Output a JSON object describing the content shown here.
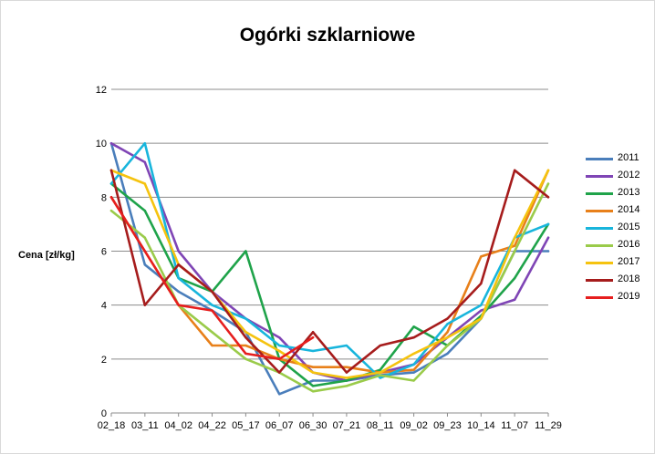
{
  "chart_data": {
    "type": "line",
    "title": "Ogórki szklarniowe",
    "ylabel": "Cena [zł/kg]",
    "xlabel": "",
    "ylim": [
      0,
      12
    ],
    "yticks": [
      0,
      2,
      4,
      6,
      8,
      10,
      12
    ],
    "grid": true,
    "legend_position": "right",
    "categories": [
      "02_18",
      "03_11",
      "04_02",
      "04_22",
      "05_17",
      "06_07",
      "06_30",
      "07_21",
      "08_11",
      "09_02",
      "09_23",
      "10_14",
      "11_07",
      "11_29"
    ],
    "series": [
      {
        "name": "2011",
        "color": "#4a7ebb",
        "values": [
          10.0,
          5.5,
          4.5,
          3.8,
          3.0,
          0.7,
          1.2,
          1.2,
          1.4,
          1.5,
          2.2,
          3.5,
          6.0,
          6.0
        ]
      },
      {
        "name": "2012",
        "color": "#7f45b5",
        "values": [
          10.0,
          9.3,
          6.0,
          4.5,
          3.5,
          2.8,
          1.5,
          1.2,
          1.5,
          1.8,
          2.8,
          3.8,
          4.2,
          6.5
        ]
      },
      {
        "name": "2013",
        "color": "#1fa34a",
        "values": [
          8.5,
          7.5,
          5.0,
          4.5,
          6.0,
          2.0,
          1.0,
          1.2,
          1.6,
          3.2,
          2.5,
          3.6,
          5.0,
          7.0
        ]
      },
      {
        "name": "2014",
        "color": "#e8801a",
        "values": [
          8.0,
          6.0,
          4.0,
          2.5,
          2.5,
          2.0,
          1.7,
          1.7,
          1.5,
          1.6,
          3.0,
          5.8,
          6.2,
          9.0
        ]
      },
      {
        "name": "2015",
        "color": "#18b5dc",
        "values": [
          8.5,
          10.0,
          5.0,
          4.0,
          3.5,
          2.5,
          2.3,
          2.5,
          1.3,
          1.8,
          3.3,
          4.0,
          6.5,
          7.0
        ]
      },
      {
        "name": "2016",
        "color": "#9acb4a",
        "values": [
          7.5,
          6.5,
          4.0,
          3.0,
          2.0,
          1.5,
          0.8,
          1.0,
          1.4,
          1.2,
          2.5,
          3.5,
          6.0,
          8.5
        ]
      },
      {
        "name": "2017",
        "color": "#f5c30f",
        "values": [
          9.0,
          8.5,
          5.5,
          4.5,
          3.0,
          2.3,
          1.5,
          1.3,
          1.5,
          2.2,
          2.8,
          3.5,
          6.5,
          9.0
        ]
      },
      {
        "name": "2018",
        "color": "#a61c1c",
        "values": [
          9.0,
          4.0,
          5.5,
          4.5,
          2.8,
          1.5,
          3.0,
          1.5,
          2.5,
          2.8,
          3.5,
          4.8,
          9.0,
          8.0
        ]
      },
      {
        "name": "2019",
        "color": "#e61e1e",
        "values": [
          8.0,
          6.0,
          4.0,
          3.8,
          2.2,
          2.0,
          2.8,
          null,
          null,
          null,
          null,
          null,
          null,
          null
        ]
      }
    ]
  }
}
